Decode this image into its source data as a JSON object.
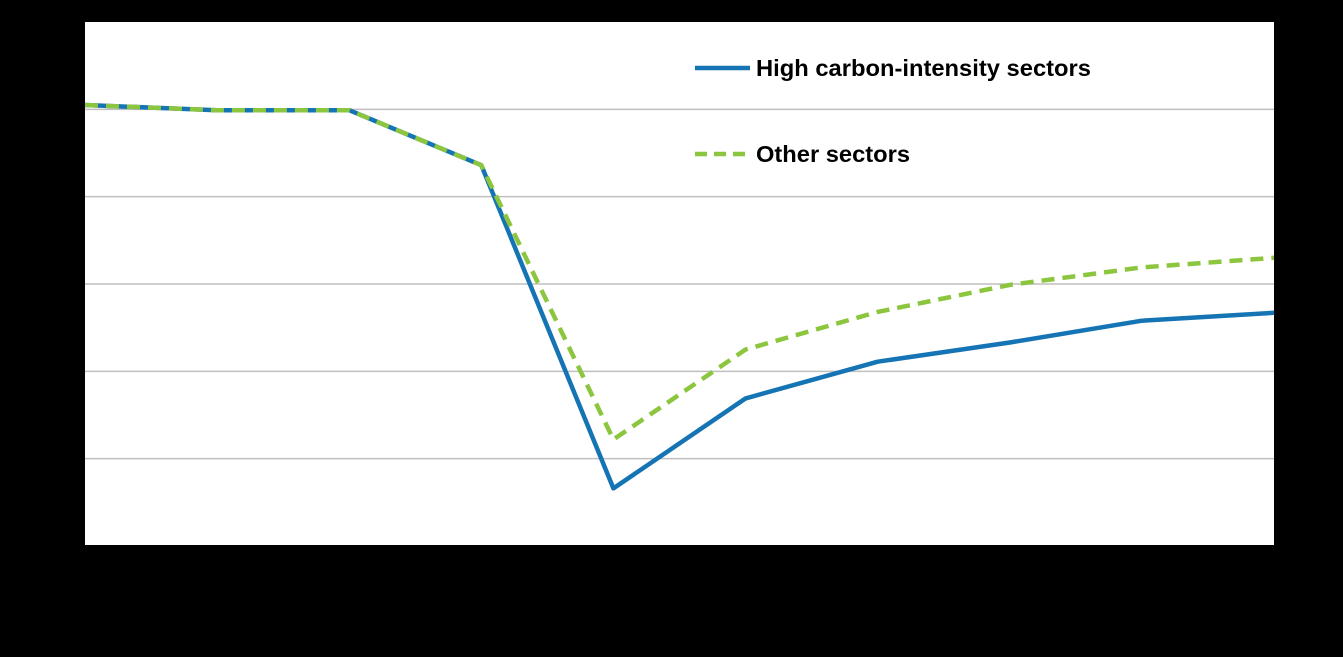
{
  "chart_data": {
    "type": "line",
    "title": "",
    "xlabel": "",
    "ylabel": "",
    "x": [
      0,
      1,
      2,
      3,
      4,
      5,
      6,
      7,
      8,
      9
    ],
    "ylim": [
      0,
      6
    ],
    "grid": true,
    "legend_position": "top-right",
    "series": [
      {
        "name": "High carbon-intensity sectors",
        "style": "solid",
        "color": "#1574B4",
        "values": [
          5.05,
          4.99,
          4.99,
          4.36,
          0.66,
          1.69,
          2.11,
          2.33,
          2.58,
          2.67
        ]
      },
      {
        "name": "Other sectors",
        "style": "dashed",
        "color": "#8CC63E",
        "values": [
          5.05,
          4.99,
          4.99,
          4.36,
          1.22,
          2.25,
          2.68,
          2.99,
          3.19,
          3.3
        ]
      }
    ]
  }
}
